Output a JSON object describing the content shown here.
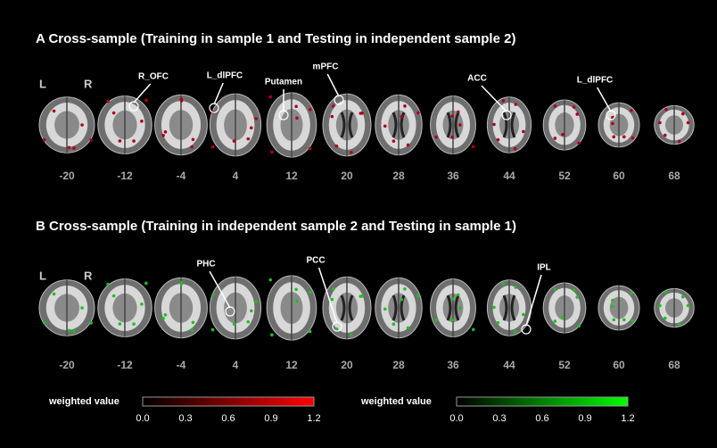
{
  "panels": [
    {
      "title": "A  Cross-sample (Training in sample 1 and Testing in independent sample 2)",
      "left": "L",
      "right": "R",
      "slices": [
        "-20",
        "-12",
        "-4",
        "4",
        "12",
        "20",
        "28",
        "36",
        "44",
        "52",
        "60",
        "68"
      ],
      "annotations": [
        "R_OFC",
        "L_dlPFC",
        "Putamen",
        "mPFC",
        "ACC",
        "L_dlPFC"
      ]
    },
    {
      "title": "B  Cross-sample (Training in independent sample 2 and Testing in sample 1)",
      "left": "L",
      "right": "R",
      "slices": [
        "-20",
        "-12",
        "-4",
        "4",
        "12",
        "20",
        "28",
        "36",
        "44",
        "52",
        "60",
        "68"
      ],
      "annotations": [
        "PHC",
        "PCC",
        "IPL"
      ]
    }
  ],
  "colorbars": [
    {
      "label": "weighted value",
      "ticks": [
        "0.0",
        "0.3",
        "0.6",
        "0.9",
        "1.2"
      ]
    },
    {
      "label": "weighted value",
      "ticks": [
        "0.0",
        "0.3",
        "0.6",
        "0.9",
        "1.2"
      ]
    }
  ]
}
